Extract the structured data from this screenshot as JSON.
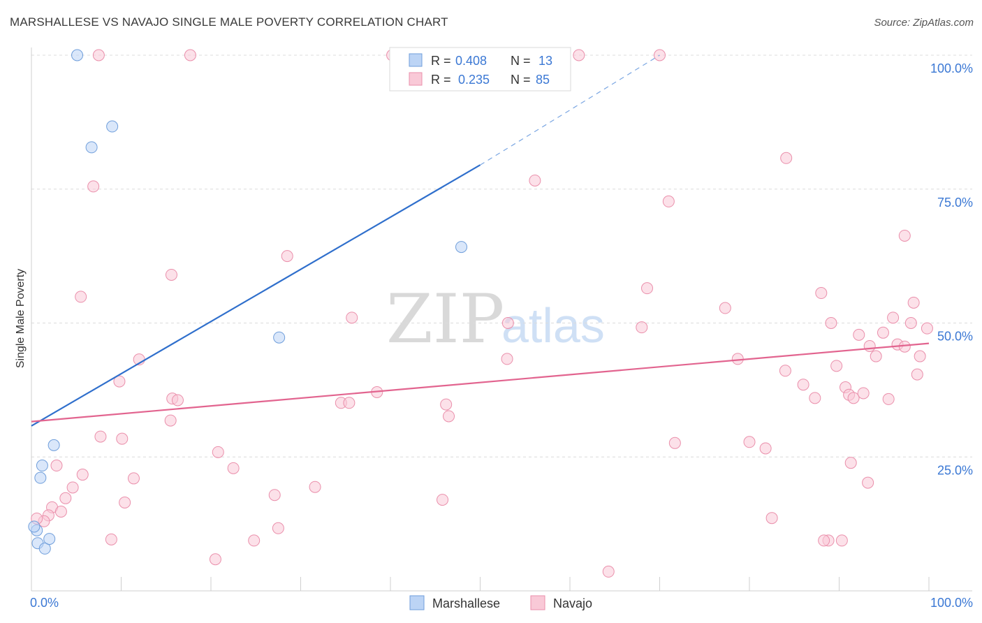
{
  "header": {
    "title": "MARSHALLESE VS NAVAJO SINGLE MALE POVERTY CORRELATION CHART",
    "source": "Source: ZipAtlas.com"
  },
  "watermark": {
    "zip": "ZIP",
    "atlas": "atlas"
  },
  "legend_box": {
    "rows": [
      {
        "r_label": "R =",
        "r_value": "0.408",
        "n_label": "N =",
        "n_value": "13"
      },
      {
        "r_label": "R =",
        "r_value": "0.235",
        "n_label": "N =",
        "n_value": "85"
      }
    ]
  },
  "colors": {
    "marshallese_fill": "#bcd4f5",
    "marshallese_stroke": "#6f9edb",
    "marshallese_line": "#2f6fcc",
    "navajo_fill": "#f9c9d7",
    "navajo_stroke": "#ea8fab",
    "navajo_line": "#e2648f",
    "value_text": "#3b78d4",
    "grid": "#dcdcdc"
  },
  "chart_data": {
    "type": "scatter",
    "title": "MARSHALLESE VS NAVAJO SINGLE MALE POVERTY CORRELATION CHART",
    "xlabel": "",
    "ylabel": "Single Male Poverty",
    "xlim": [
      0,
      100
    ],
    "ylim": [
      0,
      100
    ],
    "x_tick_labels": [
      "0.0%",
      "100.0%"
    ],
    "y_tick_labels": [
      {
        "value": 100,
        "label": "100.0%"
      },
      {
        "value": 75,
        "label": "75.0%"
      },
      {
        "value": 50,
        "label": "50.0%"
      },
      {
        "value": 25,
        "label": "25.0%"
      }
    ],
    "legend": [
      "Marshallese",
      "Navajo"
    ],
    "series": [
      {
        "name": "Marshallese",
        "R": 0.408,
        "N": 13,
        "trend": {
          "x0": 0,
          "y0": 30.8,
          "x1": 50,
          "y1": 79.5,
          "dashed_to_x": 70,
          "dashed_to_y": 100
        },
        "points": [
          [
            5.1,
            100
          ],
          [
            6.7,
            82.8
          ],
          [
            9.0,
            86.7
          ],
          [
            2.5,
            27.2
          ],
          [
            1.2,
            23.4
          ],
          [
            1.0,
            21.1
          ],
          [
            0.6,
            11.3
          ],
          [
            0.7,
            8.9
          ],
          [
            1.5,
            7.9
          ],
          [
            2.0,
            9.7
          ],
          [
            27.6,
            47.3
          ],
          [
            47.9,
            64.2
          ],
          [
            0.3,
            12.0
          ]
        ]
      },
      {
        "name": "Navajo",
        "R": 0.235,
        "N": 85,
        "trend": {
          "x0": 0,
          "y0": 31.6,
          "x1": 100,
          "y1": 46.2
        },
        "points": [
          [
            7.5,
            100
          ],
          [
            17.7,
            100
          ],
          [
            40.2,
            100
          ],
          [
            61.0,
            100
          ],
          [
            70.0,
            100
          ],
          [
            6.9,
            75.5
          ],
          [
            5.5,
            54.9
          ],
          [
            12.0,
            43.2
          ],
          [
            9.8,
            39.1
          ],
          [
            15.7,
            35.9
          ],
          [
            16.3,
            35.6
          ],
          [
            15.5,
            31.8
          ],
          [
            7.7,
            28.8
          ],
          [
            10.1,
            28.4
          ],
          [
            2.8,
            23.4
          ],
          [
            5.7,
            21.7
          ],
          [
            11.4,
            21.0
          ],
          [
            4.6,
            19.3
          ],
          [
            3.8,
            17.3
          ],
          [
            10.4,
            16.5
          ],
          [
            2.3,
            15.6
          ],
          [
            3.3,
            14.8
          ],
          [
            1.9,
            14.1
          ],
          [
            1.4,
            13.0
          ],
          [
            0.6,
            13.5
          ],
          [
            8.9,
            9.6
          ],
          [
            15.6,
            59.0
          ],
          [
            28.5,
            62.5
          ],
          [
            20.8,
            25.9
          ],
          [
            22.5,
            22.9
          ],
          [
            20.5,
            5.9
          ],
          [
            24.8,
            9.4
          ],
          [
            27.1,
            17.9
          ],
          [
            27.5,
            11.7
          ],
          [
            31.6,
            19.4
          ],
          [
            35.7,
            51.0
          ],
          [
            34.5,
            35.1
          ],
          [
            35.4,
            35.1
          ],
          [
            38.5,
            37.1
          ],
          [
            46.2,
            34.8
          ],
          [
            46.5,
            32.6
          ],
          [
            45.8,
            17.0
          ],
          [
            53.0,
            43.3
          ],
          [
            53.1,
            50.0
          ],
          [
            56.1,
            76.6
          ],
          [
            68.0,
            49.2
          ],
          [
            68.6,
            56.5
          ],
          [
            71.0,
            72.7
          ],
          [
            71.7,
            27.6
          ],
          [
            64.3,
            3.6
          ],
          [
            77.3,
            52.8
          ],
          [
            78.7,
            43.3
          ],
          [
            80.0,
            27.8
          ],
          [
            81.8,
            26.6
          ],
          [
            82.5,
            13.6
          ],
          [
            84.1,
            80.8
          ],
          [
            84.0,
            41.1
          ],
          [
            86.0,
            38.5
          ],
          [
            87.3,
            36.0
          ],
          [
            88.0,
            55.6
          ],
          [
            88.8,
            9.4
          ],
          [
            89.1,
            50.0
          ],
          [
            89.7,
            42.0
          ],
          [
            90.3,
            9.4
          ],
          [
            90.7,
            38.0
          ],
          [
            91.1,
            36.6
          ],
          [
            91.3,
            23.9
          ],
          [
            91.6,
            36.0
          ],
          [
            92.2,
            47.8
          ],
          [
            93.2,
            20.2
          ],
          [
            93.4,
            45.7
          ],
          [
            94.1,
            43.8
          ],
          [
            94.9,
            48.2
          ],
          [
            95.5,
            35.8
          ],
          [
            96.0,
            51.0
          ],
          [
            96.5,
            46.0
          ],
          [
            97.3,
            45.6
          ],
          [
            97.3,
            66.3
          ],
          [
            98.3,
            53.8
          ],
          [
            98.7,
            40.4
          ],
          [
            99.0,
            43.8
          ],
          [
            99.8,
            49.0
          ],
          [
            92.7,
            36.9
          ],
          [
            98.0,
            50.0
          ],
          [
            88.3,
            9.4
          ]
        ]
      }
    ]
  }
}
